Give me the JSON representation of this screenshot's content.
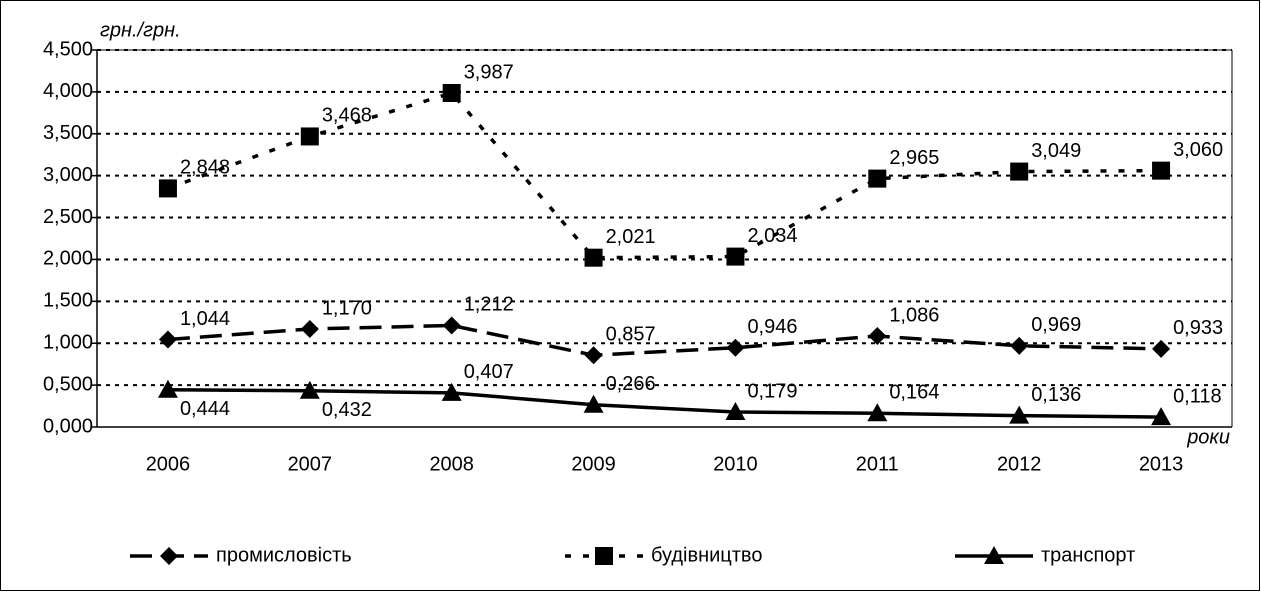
{
  "chart_data": {
    "type": "line",
    "y_axis_label": "грн./грн.",
    "x_axis_label": "роки",
    "categories": [
      "2006",
      "2007",
      "2008",
      "2009",
      "2010",
      "2011",
      "2012",
      "2013"
    ],
    "ylim": [
      0,
      4.5
    ],
    "yticks": [
      {
        "value": 0,
        "label": "0,000"
      },
      {
        "value": 0.5,
        "label": "0,500"
      },
      {
        "value": 1,
        "label": "1,000"
      },
      {
        "value": 1.5,
        "label": "1,500"
      },
      {
        "value": 2,
        "label": "2,000"
      },
      {
        "value": 2.5,
        "label": "2,500"
      },
      {
        "value": 3,
        "label": "3,000"
      },
      {
        "value": 3.5,
        "label": "3,500"
      },
      {
        "value": 4,
        "label": "4,000"
      },
      {
        "value": 4.5,
        "label": "4,500"
      }
    ],
    "grid": true,
    "legend": "bottom",
    "series": [
      {
        "name": "промисловість",
        "color": "#000000",
        "marker": "diamond",
        "dash": "long",
        "values": [
          1.044,
          1.17,
          1.212,
          0.857,
          0.946,
          1.086,
          0.969,
          0.933
        ],
        "value_labels": [
          "1,044",
          "1,170",
          "1,212",
          "0,857",
          "0,946",
          "1,086",
          "0,969",
          "0,933"
        ]
      },
      {
        "name": "будівництво",
        "color": "#000000",
        "marker": "square",
        "dash": "short",
        "values": [
          2.848,
          3.468,
          3.987,
          2.021,
          2.034,
          2.965,
          3.049,
          3.06
        ],
        "value_labels": [
          "2,848",
          "3,468",
          "3,987",
          "2,021",
          "2,034",
          "2,965",
          "3,049",
          "3,060"
        ]
      },
      {
        "name": "транспорт",
        "color": "#000000",
        "marker": "triangle",
        "dash": "solid",
        "values": [
          0.444,
          0.432,
          0.407,
          0.266,
          0.179,
          0.164,
          0.136,
          0.118
        ],
        "value_labels": [
          "0,444",
          "0,432",
          "0,407",
          "0,266",
          "0,179",
          "0,164",
          "0,136",
          "0,118"
        ]
      }
    ]
  }
}
